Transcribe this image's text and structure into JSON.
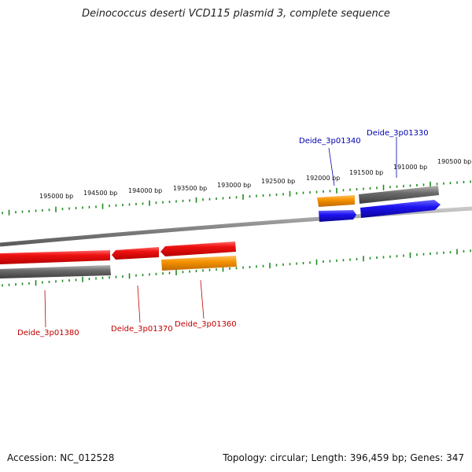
{
  "title": "Deinococcus deserti VCD115 plasmid 3, complete sequence",
  "footer": {
    "accession": "Accession: NC_012528",
    "summary": "Topology: circular; Length: 396,459 bp; Genes: 347"
  },
  "colors": {
    "backbone": "#8c8c8c",
    "ticks": "#1f8a1f",
    "gene_red": "#e01010",
    "gene_orange": "#f08c00",
    "gene_blue": "#1a10e8",
    "gene_gray": "#666666",
    "label_red": "#c00000",
    "label_blue": "#0000b0"
  },
  "position_labels": [
    "195000 bp",
    "194500 bp",
    "194000 bp",
    "193500 bp",
    "193000 bp",
    "192500 bp",
    "192000 bp",
    "191500 bp",
    "191000 bp",
    "190500 bp"
  ],
  "gene_labels": [
    {
      "text": "Deide_3p01330",
      "color": "label_blue"
    },
    {
      "text": "Deide_3p01340",
      "color": "label_blue"
    },
    {
      "text": "Deide_3p01360",
      "color": "label_red"
    },
    {
      "text": "Deide_3p01370",
      "color": "label_red"
    },
    {
      "text": "Deide_3p01380",
      "color": "label_red"
    }
  ]
}
